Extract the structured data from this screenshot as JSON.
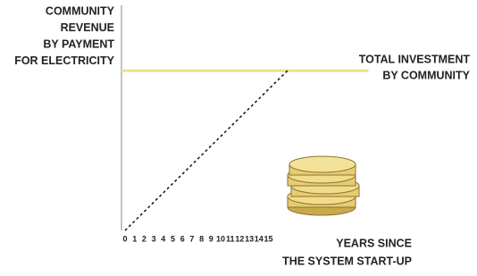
{
  "chart_data": {
    "type": "line",
    "ylabel": [
      "COMMUNITY",
      "REVENUE",
      "BY PAYMENT",
      "FOR ELECTRICITY"
    ],
    "xlabel": [
      "YEARS SINCE",
      "THE SYSTEM START-UP"
    ],
    "x": [
      0,
      17
    ],
    "series": [
      {
        "values": [
          0,
          71
        ],
        "color": "#111111",
        "dashed": true
      }
    ],
    "reference_line": {
      "value": 71,
      "label": [
        "TOTAL INVESTMENT",
        "BY COMMUNITY"
      ],
      "color": "#f0df8a"
    },
    "xlim": [
      0,
      25
    ],
    "ylim": [
      0,
      100
    ],
    "xticks": [
      0,
      1,
      2,
      3,
      4,
      5,
      6,
      7,
      8,
      9,
      10,
      11,
      12,
      13,
      14,
      15
    ]
  }
}
